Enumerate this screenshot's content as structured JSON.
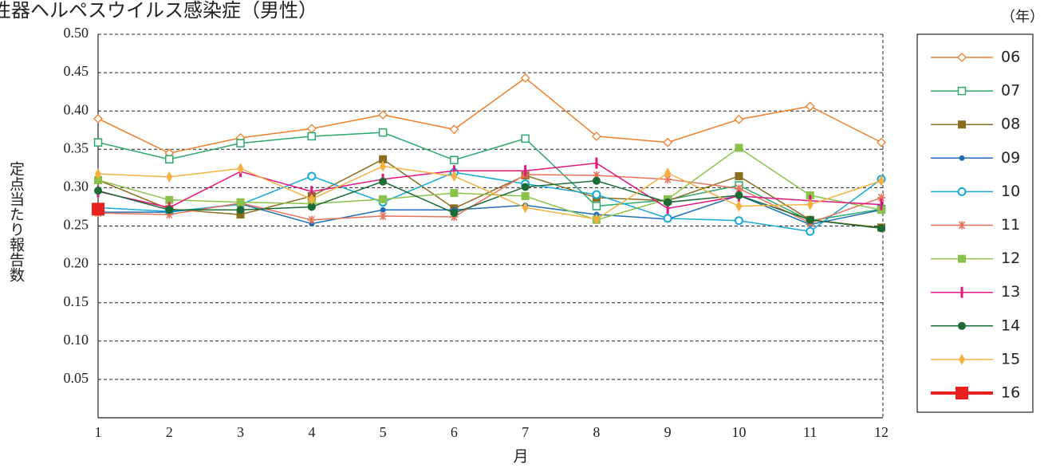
{
  "chart_data": {
    "type": "line",
    "title": "性器ヘルペスウイルス感染症（男性）",
    "x_label": "月",
    "y_label": "定点当たり報告数",
    "legend_title": "（年）",
    "categories": [
      1,
      2,
      3,
      4,
      5,
      6,
      7,
      8,
      9,
      10,
      11,
      12
    ],
    "ylim": [
      0,
      0.5
    ],
    "yticks": [
      0.05,
      {
        "value": 0.1,
        "label": "0.10"
      },
      0.15,
      {
        "value": 0.2,
        "label": "0.20"
      },
      0.25,
      {
        "value": 0.3,
        "label": "0.30"
      },
      0.35,
      {
        "value": 0.4,
        "label": "0.40"
      },
      0.45,
      {
        "value": 0.5,
        "label": "0.50"
      }
    ],
    "grid": true,
    "legend": "right",
    "series": [
      {
        "name": "06",
        "color": "#f07f2a",
        "marker": "diamond-open",
        "values": [
          0.39,
          0.345,
          0.365,
          0.377,
          0.395,
          0.376,
          0.443,
          0.367,
          0.359,
          0.389,
          0.406,
          0.359
        ]
      },
      {
        "name": "07",
        "color": "#2ba86a",
        "marker": "square-open",
        "values": [
          0.359,
          0.337,
          0.358,
          0.367,
          0.372,
          0.336,
          0.364,
          0.276,
          0.284,
          0.303,
          0.257,
          0.272
        ]
      },
      {
        "name": "08",
        "color": "#8b6d1f",
        "marker": "square",
        "values": [
          0.31,
          0.272,
          0.265,
          0.289,
          0.337,
          0.273,
          0.316,
          0.287,
          0.283,
          0.315,
          0.258,
          0.248
        ]
      },
      {
        "name": "09",
        "color": "#1f6eb5",
        "marker": "dot",
        "values": [
          0.268,
          0.268,
          0.279,
          0.253,
          0.271,
          0.271,
          0.277,
          0.265,
          0.259,
          0.29,
          0.252,
          0.271
        ]
      },
      {
        "name": "10",
        "color": "#17a8d8",
        "marker": "circle-open",
        "values": [
          0.274,
          0.269,
          0.278,
          0.315,
          0.281,
          0.32,
          0.305,
          0.291,
          0.26,
          0.257,
          0.243,
          0.311
        ]
      },
      {
        "name": "11",
        "color": "#e8735a",
        "marker": "asterisk",
        "values": [
          0.267,
          0.265,
          0.28,
          0.258,
          0.263,
          0.262,
          0.317,
          0.316,
          0.311,
          0.299,
          0.254,
          0.287
        ]
      },
      {
        "name": "12",
        "color": "#8bc34a",
        "marker": "square",
        "values": [
          0.31,
          0.284,
          0.281,
          0.279,
          0.285,
          0.293,
          0.289,
          0.258,
          0.285,
          0.352,
          0.29,
          0.271
        ]
      },
      {
        "name": "13",
        "color": "#e4157f",
        "marker": "bar",
        "values": [
          0.295,
          0.274,
          0.321,
          0.295,
          0.311,
          0.322,
          0.322,
          0.332,
          0.273,
          0.289,
          0.283,
          0.278
        ]
      },
      {
        "name": "14",
        "color": "#1a6b35",
        "marker": "circle",
        "values": [
          0.296,
          0.271,
          0.271,
          0.275,
          0.308,
          0.267,
          0.301,
          0.309,
          0.281,
          0.29,
          0.258,
          0.247
        ]
      },
      {
        "name": "15",
        "color": "#f5b041",
        "marker": "diamond",
        "values": [
          0.318,
          0.314,
          0.325,
          0.285,
          0.328,
          0.315,
          0.274,
          0.259,
          0.319,
          0.276,
          0.278,
          0.309
        ]
      },
      {
        "name": "16",
        "color": "#e8201e",
        "marker": "big-square",
        "values": [
          0.272,
          null,
          null,
          null,
          null,
          null,
          null,
          null,
          null,
          null,
          null,
          null
        ]
      }
    ]
  }
}
